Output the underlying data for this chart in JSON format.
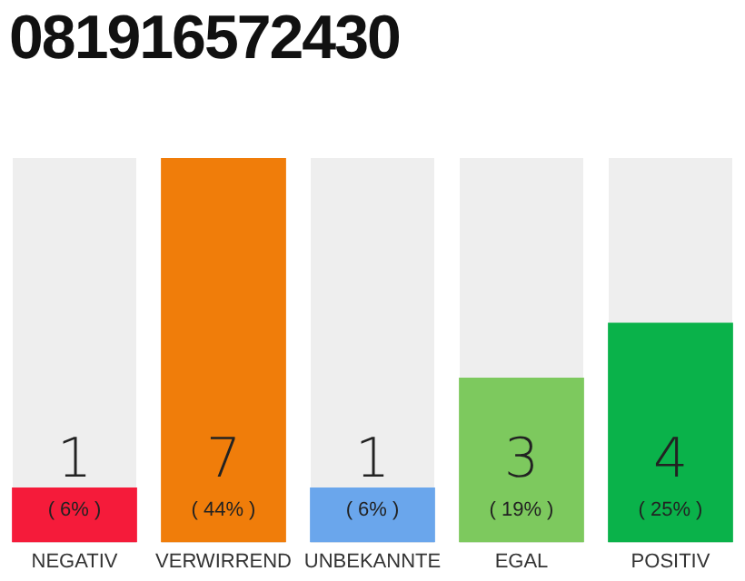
{
  "chart_data": {
    "type": "bar",
    "title": "081916572430",
    "categories": [
      "NEGATIV",
      "VERWIRREND",
      "UNBEKANNTE",
      "EGAL",
      "POSITIV"
    ],
    "values": [
      1,
      7,
      1,
      3,
      4
    ],
    "colors": [
      "#f51b3a",
      "#f07d0a",
      "#6aa6ec",
      "#7dc95e",
      "#0ab24a"
    ],
    "data_labels": true,
    "annotations": [
      "( 6% )",
      "( 44% )",
      "( 6% )",
      "( 19% )",
      "( 25% )"
    ],
    "tick_labels": "x",
    "grid": false,
    "legend": false
  }
}
